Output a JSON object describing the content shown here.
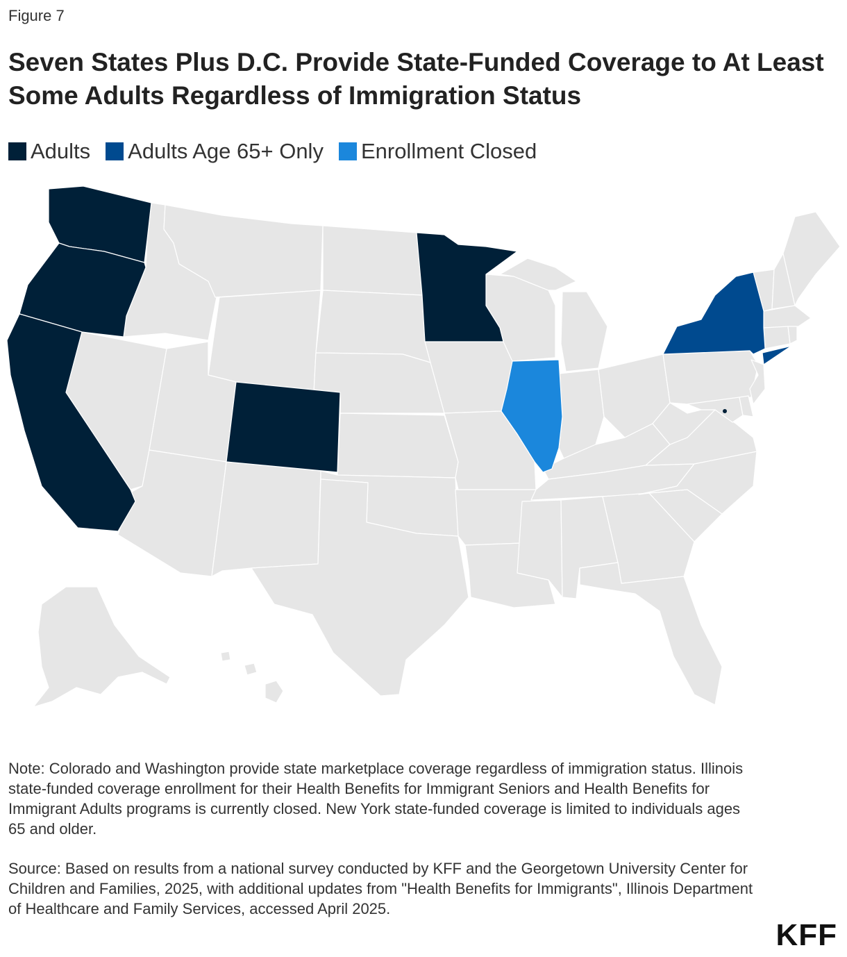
{
  "figure_label": "Figure 7",
  "title": "Seven States Plus D.C. Provide State-Funded Coverage to At Least Some Adults Regardless of Immigration Status",
  "legend": [
    {
      "label": "Adults",
      "color": "#002038"
    },
    {
      "label": "Adults Age 65+ Only",
      "color": "#004a8f"
    },
    {
      "label": "Enrollment Closed",
      "color": "#1b87dc"
    }
  ],
  "colors": {
    "default_state": "#e6e6e6"
  },
  "chart_data": {
    "type": "choropleth",
    "title": "Seven States Plus D.C. Provide State-Funded Coverage to At Least Some Adults Regardless of Immigration Status",
    "categories": [
      "Adults",
      "Adults Age 65+ Only",
      "Enrollment Closed"
    ],
    "states": {
      "Washington": "Adults",
      "Oregon": "Adults",
      "California": "Adults",
      "Colorado": "Adults",
      "Minnesota": "Adults",
      "District of Columbia": "Adults",
      "New York": "Adults Age 65+ Only",
      "Illinois": "Enrollment Closed"
    }
  },
  "note": "Note: Colorado and Washington provide state marketplace coverage regardless of immigration status. Illinois state-funded coverage enrollment for their Health Benefits for Immigrant Seniors and Health Benefits for Immigrant Adults programs is currently closed. New York state-funded coverage is limited to individuals ages 65 and older.",
  "source": "Source: Based on results from a national survey conducted by KFF and the Georgetown University Center for Children and Families, 2025, with additional updates from \"Health Benefits for Immigrants\", Illinois Department of Healthcare and Family Services, accessed April 2025.",
  "logo": "KFF"
}
